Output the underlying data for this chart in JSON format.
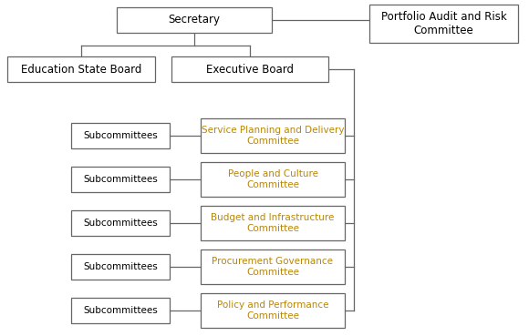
{
  "background_color": "#ffffff",
  "box_edge_color": "#666666",
  "box_face_color": "#ffffff",
  "line_color": "#666666",
  "secretary_text": "Secretary",
  "portfolio_text": "Portfolio Audit and Risk\nCommittee",
  "edu_board_text": "Education State Board",
  "exec_board_text": "Executive Board",
  "subcommittee_label": "Subcommittees",
  "committees": [
    "Service Planning and Delivery\nCommittee",
    "People and Culture\nCommittee",
    "Budget and Infrastructure\nCommittee",
    "Procurement Governance\nCommittee",
    "Policy and Performance\nCommittee"
  ],
  "committee_text_color": "#b8860b",
  "subcommittee_text_color": "#000000",
  "main_box_text_color": "#000000",
  "font_size_main": 8.5,
  "font_size_sub": 7.5,
  "font_size_committee": 7.5
}
